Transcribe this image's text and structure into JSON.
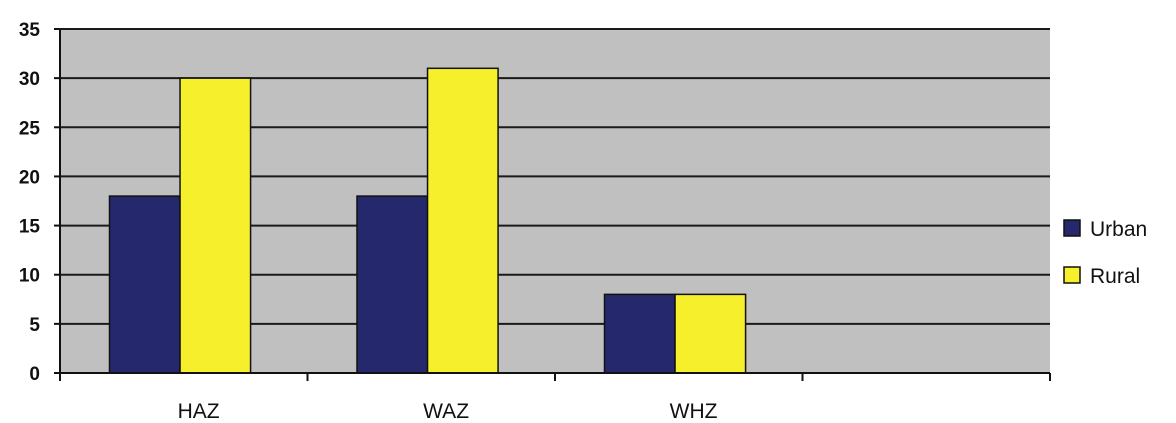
{
  "chart_data": {
    "type": "bar",
    "categories": [
      "HAZ",
      "WAZ",
      "WHZ",
      ""
    ],
    "series": [
      {
        "name": "Urban",
        "values": [
          18,
          18,
          8,
          null
        ]
      },
      {
        "name": "Rural",
        "values": [
          30,
          31,
          8,
          null
        ]
      }
    ],
    "ylim": [
      0,
      35
    ],
    "yticks": [
      0,
      5,
      10,
      15,
      20,
      25,
      30,
      35
    ],
    "grid": true,
    "legend_position": "right",
    "title": "",
    "xlabel": "",
    "ylabel": ""
  },
  "colors": {
    "plot_background": "#c0c0c0",
    "Urban": "#26286e",
    "Rural": "#f6f02c",
    "gridline": "#1a1a1a"
  }
}
